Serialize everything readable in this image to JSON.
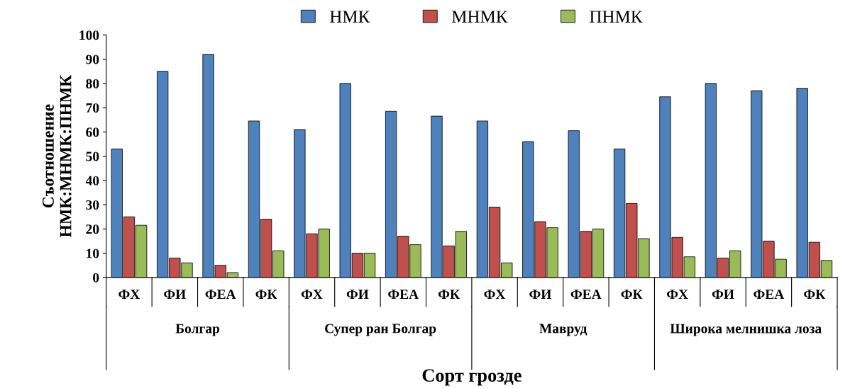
{
  "chart_data": {
    "type": "bar",
    "categories": [
      "ФХ",
      "ФИ",
      "ФЕА",
      "ФК",
      "ФХ",
      "ФИ",
      "ФЕА",
      "ФК",
      "ФХ",
      "ФИ",
      "ФЕА",
      "ФК",
      "ФХ",
      "ФИ",
      "ФЕА",
      "ФК"
    ],
    "series": [
      {
        "name": "НМК",
        "color": "#4f81bd",
        "values": [
          53,
          85,
          92,
          64.5,
          61,
          80,
          68.5,
          66.5,
          64.5,
          56,
          60.5,
          53,
          74.5,
          80,
          77,
          78
        ]
      },
      {
        "name": "МНМК",
        "color": "#c0504d",
        "values": [
          25,
          8,
          5,
          24,
          18,
          10,
          17,
          13,
          29,
          23,
          19,
          30.5,
          16.5,
          8,
          15,
          14.5
        ]
      },
      {
        "name": "ПНМК",
        "color": "#9bbb59",
        "values": [
          21.5,
          6,
          2,
          11,
          20,
          10,
          13.5,
          19,
          6,
          20.5,
          20,
          16,
          8.5,
          11,
          7.5,
          7
        ]
      }
    ],
    "ylabel": "Съотношение\nНМК:МНМК:ПНМК",
    "xlabel": "Сорт грозде",
    "annotations": [
      "Болгар",
      "Супер ран Болгар",
      "Мавруд",
      "Широка мелнишка лоза"
    ],
    "ylim": [
      0,
      100
    ],
    "yticks": [
      0,
      10,
      20,
      30,
      40,
      50,
      60,
      70,
      80,
      90,
      100
    ],
    "legend": "top",
    "grid": false
  }
}
